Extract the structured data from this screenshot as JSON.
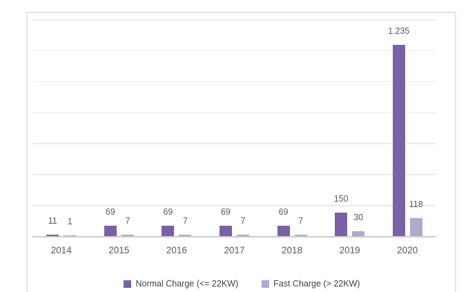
{
  "chart_data": {
    "type": "bar",
    "title": "",
    "xlabel": "",
    "ylabel": "",
    "categories": [
      "2014",
      "2015",
      "2016",
      "2017",
      "2018",
      "2019",
      "2020"
    ],
    "series": [
      {
        "name": "Normal Charge (<= 22KW)",
        "color": "#7a61a5",
        "values": [
          11,
          69,
          69,
          69,
          69,
          150,
          1235
        ],
        "labels": [
          "11",
          "69",
          "69",
          "69",
          "69",
          "150",
          "1.235"
        ]
      },
      {
        "name": "Fast Charge (> 22KW)",
        "color": "#b4a7cd",
        "values": [
          1,
          7,
          7,
          7,
          7,
          30,
          118
        ],
        "labels": [
          "1",
          "7",
          "7",
          "7",
          "7",
          "30",
          "118"
        ]
      }
    ],
    "ylim": [
      0,
      1400
    ],
    "gridline_step": 200,
    "grid": true,
    "y_axis_labels_visible": false,
    "legend_position": "bottom",
    "data_labels": "outside-end"
  },
  "colors": {
    "gridline": "#eaeaea",
    "axis_line": "#cccccc",
    "frame_border": "#e4e4e4",
    "label_text": "#595959",
    "legend_text": "#3f3f3f",
    "background": "#ffffff"
  }
}
